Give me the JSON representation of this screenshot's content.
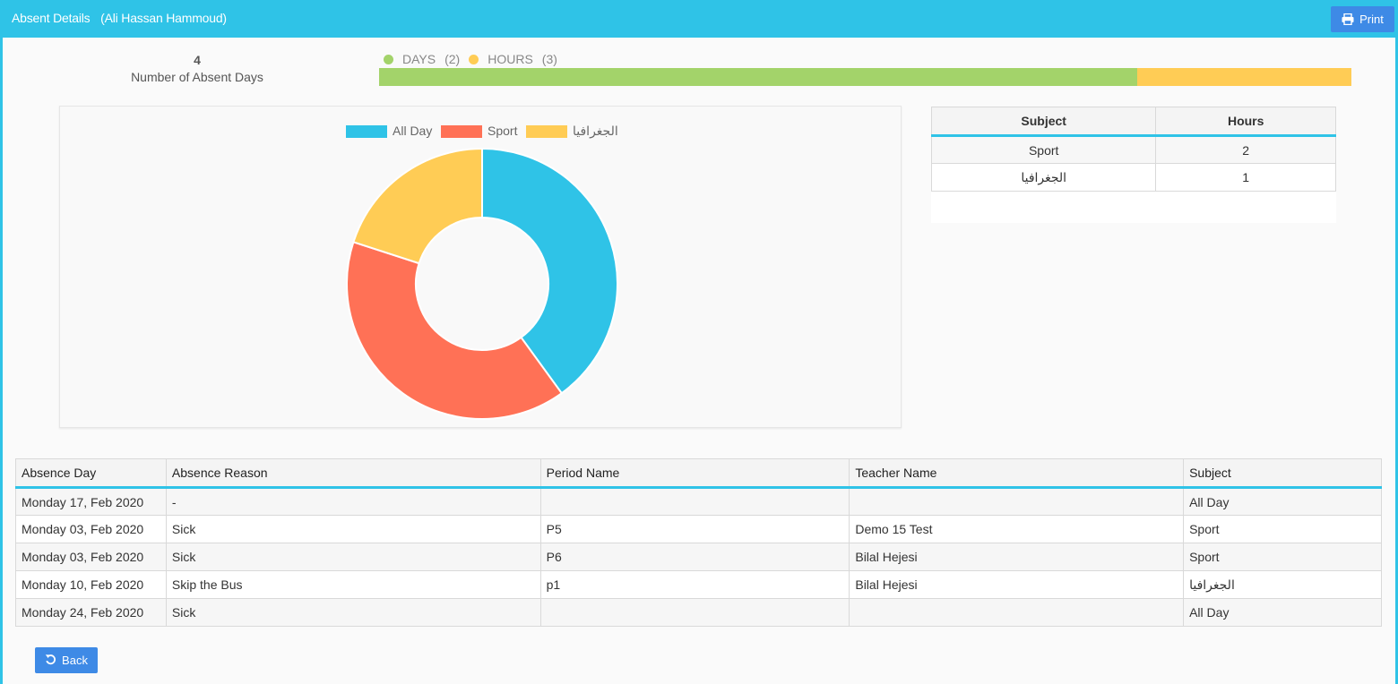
{
  "header": {
    "title": "Absent Details",
    "student": "(Ali Hassan Hammoud)",
    "print_label": "Print",
    "bg_color": "#2fc3e7"
  },
  "summary": {
    "absent_days_value": "4",
    "absent_days_label": "Number of Absent Days",
    "legend": [
      {
        "label": "DAYS",
        "count": "(2)",
        "color": "#a3d36a"
      },
      {
        "label": "HOURS",
        "count": "(3)",
        "color": "#ffcc55"
      }
    ],
    "progress": [
      {
        "name": "days",
        "fraction": 0.78,
        "color": "#a3d36a"
      },
      {
        "name": "hours",
        "fraction": 0.22,
        "color": "#ffcc55"
      }
    ]
  },
  "chart_data": {
    "type": "pie",
    "variant": "doughnut",
    "legend_position": "top",
    "categories": [
      "All Day",
      "Sport",
      "الجغرافيا"
    ],
    "values": [
      2,
      2,
      1
    ],
    "colors": [
      "#2fc3e7",
      "#ff7156",
      "#ffcc55"
    ]
  },
  "subject_table": {
    "headers": [
      "Subject",
      "Hours"
    ],
    "rows": [
      [
        "Sport",
        "2"
      ],
      [
        "الجغرافيا",
        "1"
      ]
    ]
  },
  "absence_table": {
    "headers": [
      "Absence Day",
      "Absence Reason",
      "Period Name",
      "Teacher Name",
      "Subject"
    ],
    "rows": [
      [
        "Monday 17, Feb 2020",
        "-",
        "",
        "",
        "All Day"
      ],
      [
        "Monday 03, Feb 2020",
        "Sick",
        "P5",
        "Demo 15 Test",
        "Sport"
      ],
      [
        "Monday 03, Feb 2020",
        "Sick",
        "P6",
        "Bilal Hejesi",
        "Sport"
      ],
      [
        "Monday 10, Feb 2020",
        "Skip the Bus",
        "p1",
        "Bilal Hejesi",
        "الجغرافيا"
      ],
      [
        "Monday 24, Feb 2020",
        "Sick",
        "",
        "",
        "All Day"
      ]
    ]
  },
  "footer": {
    "back_label": "Back"
  },
  "icons": {
    "print": "printer-icon",
    "back": "undo-icon"
  }
}
